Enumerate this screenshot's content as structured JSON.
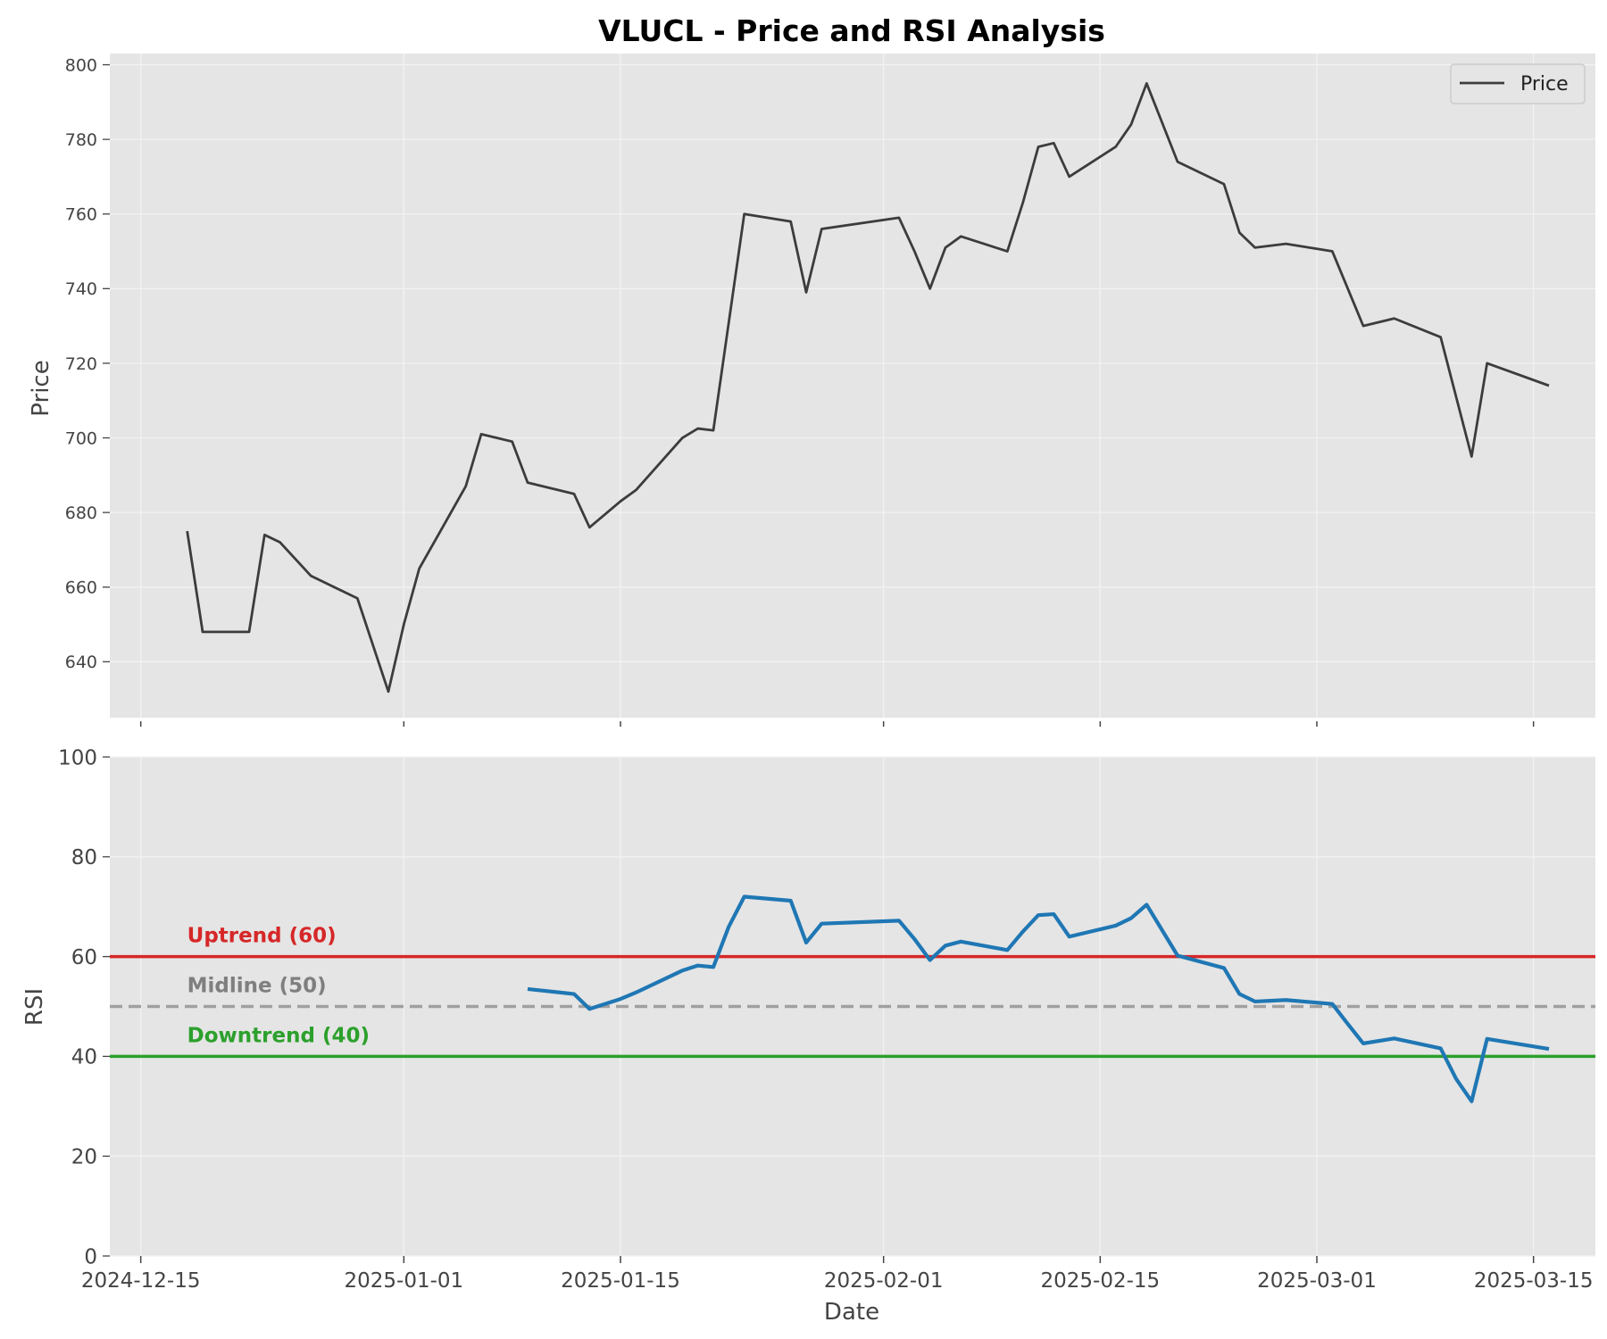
{
  "chart_data": {
    "title": "VLUCL - Price and RSI Analysis",
    "xlabel": "Date",
    "x_ticks": [
      "2024-12-15",
      "2025-01-01",
      "2025-01-15",
      "2025-02-01",
      "2025-02-15",
      "2025-03-01",
      "2025-03-15"
    ],
    "xlim": [
      "2024-12-13",
      "2025-03-19"
    ],
    "grid": true,
    "colors": {
      "background": "#e5e5e5",
      "grid": "#f2f2f2",
      "price": "#3c3c3c",
      "rsi": "#1f77b4",
      "uptrend": "#d62728",
      "midline": "#a0a0a0",
      "downtrend": "#2ca02c",
      "midline_label": "#7f7f7f"
    },
    "panels": [
      {
        "type": "line",
        "ylabel": "Price",
        "ylim": [
          625,
          803
        ],
        "y_ticks": [
          640,
          660,
          680,
          700,
          720,
          740,
          760,
          780,
          800
        ],
        "legend": {
          "placement": "top-right",
          "entries": [
            "Price"
          ]
        },
        "series": [
          {
            "name": "Price",
            "points": [
              [
                "2024-12-18",
                675
              ],
              [
                "2024-12-19",
                648
              ],
              [
                "2024-12-22",
                648
              ],
              [
                "2024-12-23",
                674
              ],
              [
                "2024-12-24",
                672
              ],
              [
                "2024-12-26",
                663
              ],
              [
                "2024-12-29",
                657
              ],
              [
                "2024-12-31",
                632
              ],
              [
                "2025-01-01",
                650
              ],
              [
                "2025-01-02",
                665
              ],
              [
                "2025-01-05",
                687
              ],
              [
                "2025-01-06",
                701
              ],
              [
                "2025-01-07",
                700
              ],
              [
                "2025-01-08",
                699
              ],
              [
                "2025-01-09",
                688
              ],
              [
                "2025-01-12",
                685
              ],
              [
                "2025-01-13",
                676
              ],
              [
                "2025-01-15",
                683
              ],
              [
                "2025-01-16",
                686
              ],
              [
                "2025-01-19",
                700
              ],
              [
                "2025-01-20",
                702.5
              ],
              [
                "2025-01-21",
                702
              ],
              [
                "2025-01-22",
                731
              ],
              [
                "2025-01-23",
                760
              ],
              [
                "2025-01-26",
                758
              ],
              [
                "2025-01-27",
                739
              ],
              [
                "2025-01-28",
                756
              ],
              [
                "2025-02-02",
                759
              ],
              [
                "2025-02-03",
                750
              ],
              [
                "2025-02-04",
                740
              ],
              [
                "2025-02-05",
                751
              ],
              [
                "2025-02-06",
                754
              ],
              [
                "2025-02-09",
                750
              ],
              [
                "2025-02-10",
                763
              ],
              [
                "2025-02-11",
                778
              ],
              [
                "2025-02-12",
                779
              ],
              [
                "2025-02-13",
                770
              ],
              [
                "2025-02-16",
                778
              ],
              [
                "2025-02-17",
                784
              ],
              [
                "2025-02-18",
                795
              ],
              [
                "2025-02-20",
                774
              ],
              [
                "2025-02-23",
                768
              ],
              [
                "2025-02-24",
                755
              ],
              [
                "2025-02-25",
                751
              ],
              [
                "2025-02-27",
                752
              ],
              [
                "2025-03-02",
                750
              ],
              [
                "2025-03-04",
                730
              ],
              [
                "2025-03-06",
                732
              ],
              [
                "2025-03-09",
                727
              ],
              [
                "2025-03-11",
                695
              ],
              [
                "2025-03-12",
                720
              ],
              [
                "2025-03-16",
                714
              ]
            ]
          }
        ]
      },
      {
        "type": "line",
        "ylabel": "RSI",
        "ylim": [
          0,
          100
        ],
        "y_ticks": [
          0,
          20,
          40,
          60,
          80,
          100
        ],
        "reference_lines": [
          {
            "label": "Uptrend (60)",
            "value": 60,
            "style": "solid",
            "color": "#d62728"
          },
          {
            "label": "Midline (50)",
            "value": 50,
            "style": "dashed",
            "color": "#a0a0a0"
          },
          {
            "label": "Downtrend (40)",
            "value": 40,
            "style": "solid",
            "color": "#2ca02c"
          }
        ],
        "series": [
          {
            "name": "RSI",
            "points": [
              [
                "2025-01-09",
                53.5
              ],
              [
                "2025-01-12",
                52.5
              ],
              [
                "2025-01-13",
                49.5
              ],
              [
                "2025-01-15",
                51.5
              ],
              [
                "2025-01-16",
                52.8
              ],
              [
                "2025-01-19",
                57.2
              ],
              [
                "2025-01-20",
                58.2
              ],
              [
                "2025-01-21",
                57.9
              ],
              [
                "2025-01-22",
                66
              ],
              [
                "2025-01-23",
                72
              ],
              [
                "2025-01-26",
                71.2
              ],
              [
                "2025-01-27",
                62.8
              ],
              [
                "2025-01-28",
                66.6
              ],
              [
                "2025-02-02",
                67.2
              ],
              [
                "2025-02-03",
                63.5
              ],
              [
                "2025-02-04",
                59.3
              ],
              [
                "2025-02-05",
                62.2
              ],
              [
                "2025-02-06",
                63
              ],
              [
                "2025-02-09",
                61.3
              ],
              [
                "2025-02-10",
                65
              ],
              [
                "2025-02-11",
                68.3
              ],
              [
                "2025-02-12",
                68.5
              ],
              [
                "2025-02-13",
                64
              ],
              [
                "2025-02-16",
                66.2
              ],
              [
                "2025-02-17",
                67.7
              ],
              [
                "2025-02-18",
                70.4
              ],
              [
                "2025-02-20",
                60.2
              ],
              [
                "2025-02-23",
                57.7
              ],
              [
                "2025-02-24",
                52.5
              ],
              [
                "2025-02-25",
                51
              ],
              [
                "2025-02-27",
                51.3
              ],
              [
                "2025-03-02",
                50.5
              ],
              [
                "2025-03-03",
                46.5
              ],
              [
                "2025-03-04",
                42.6
              ],
              [
                "2025-03-06",
                43.6
              ],
              [
                "2025-03-09",
                41.6
              ],
              [
                "2025-03-10",
                35.5
              ],
              [
                "2025-03-11",
                31
              ],
              [
                "2025-03-12",
                43.5
              ],
              [
                "2025-03-16",
                41.5
              ]
            ]
          }
        ]
      }
    ]
  }
}
